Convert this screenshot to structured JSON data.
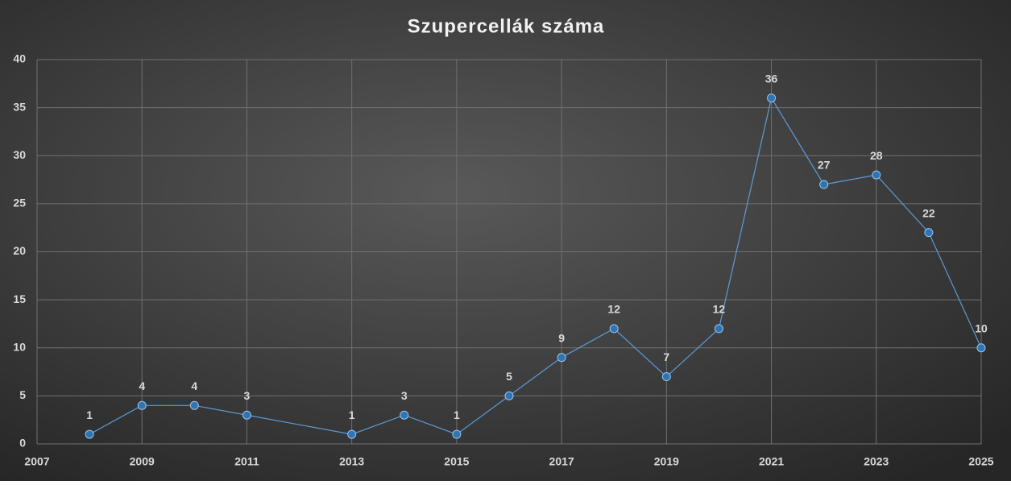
{
  "chart_data": {
    "type": "line",
    "title": "Szupercellák száma",
    "x": [
      2008,
      2009,
      2010,
      2011,
      2013,
      2014,
      2015,
      2016,
      2017,
      2018,
      2019,
      2020,
      2021,
      2022,
      2023,
      2024,
      2025
    ],
    "series": [
      {
        "name": "Szupercellák száma",
        "color": "#5b9bd5",
        "values": [
          1,
          4,
          4,
          3,
          1,
          3,
          1,
          5,
          9,
          12,
          7,
          12,
          36,
          27,
          28,
          22,
          10
        ]
      }
    ],
    "xlim": [
      2007,
      2025
    ],
    "xticks": [
      2007,
      2009,
      2011,
      2013,
      2015,
      2017,
      2019,
      2021,
      2023,
      2025
    ],
    "ylim": [
      0,
      40
    ],
    "yticks": [
      0,
      5,
      10,
      15,
      20,
      25,
      30,
      35,
      40
    ],
    "grid": true
  }
}
